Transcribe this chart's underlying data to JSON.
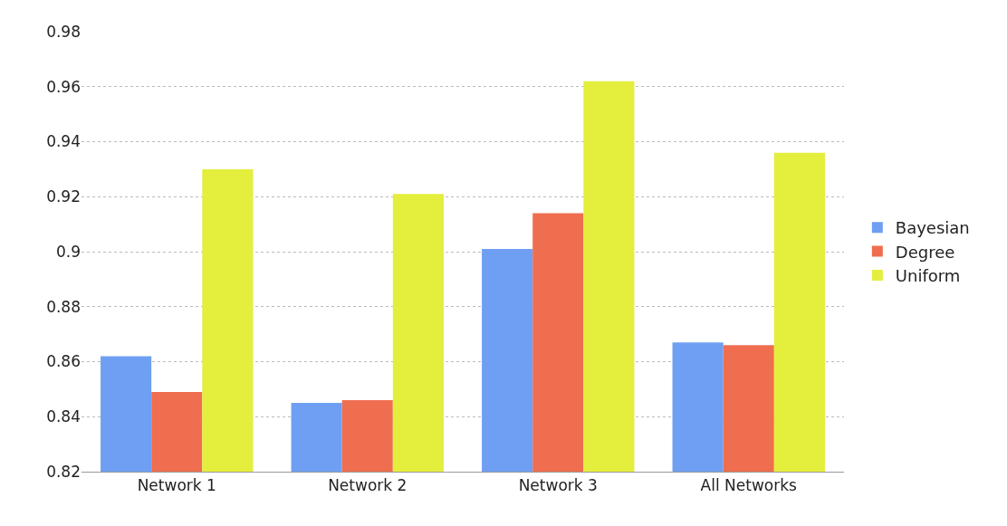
{
  "chart_data": {
    "type": "bar",
    "categories": [
      "Network 1",
      "Network 2",
      "Network 3",
      "All Networks"
    ],
    "series": [
      {
        "name": "Bayesian",
        "color": "#6f9ff2",
        "values": [
          0.862,
          0.845,
          0.901,
          0.867
        ]
      },
      {
        "name": "Degree",
        "color": "#ef6e4f",
        "values": [
          0.849,
          0.846,
          0.914,
          0.866
        ]
      },
      {
        "name": "Uniform",
        "color": "#e4ee3c",
        "values": [
          0.93,
          0.921,
          0.962,
          0.936
        ]
      }
    ],
    "ylim": [
      0.82,
      0.98
    ],
    "yticks": [
      0.82,
      0.84,
      0.86,
      0.88,
      0.9,
      0.92,
      0.94,
      0.96,
      0.98
    ],
    "grid": "y",
    "legend": "right"
  }
}
